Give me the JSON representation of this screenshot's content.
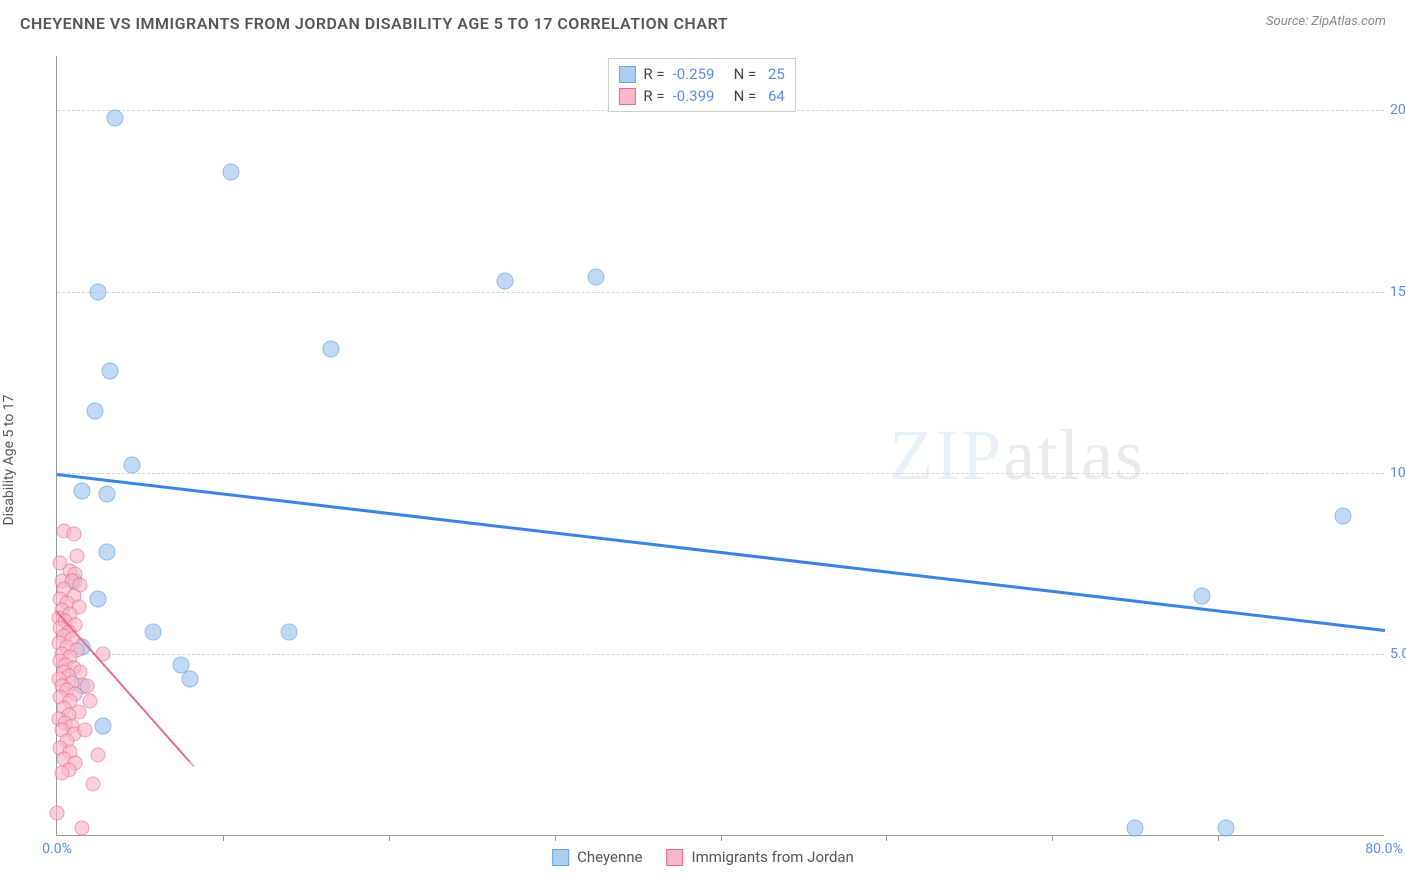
{
  "header": {
    "title": "CHEYENNE VS IMMIGRANTS FROM JORDAN DISABILITY AGE 5 TO 17 CORRELATION CHART",
    "source": "Source: ZipAtlas.com"
  },
  "ylabel": "Disability Age 5 to 17",
  "chart": {
    "type": "scatter",
    "xlim": [
      0,
      80
    ],
    "ylim": [
      0,
      21.5
    ],
    "background": "#ffffff",
    "grid_color": "#d5d5d5",
    "axis_color": "#999999",
    "yticks": [
      {
        "v": 5,
        "label": "5.0%"
      },
      {
        "v": 10,
        "label": "10.0%"
      },
      {
        "v": 15,
        "label": "15.0%"
      },
      {
        "v": 20,
        "label": "20.0%"
      }
    ],
    "xticks": [
      {
        "v": 0,
        "label": "0.0%"
      },
      {
        "v": 80,
        "label": "80.0%"
      }
    ],
    "xtick_marks": [
      10,
      20,
      30,
      40,
      50,
      60,
      70
    ],
    "watermark": {
      "zip": "ZIP",
      "atlas": "atlas"
    },
    "series": [
      {
        "name": "Cheyenne",
        "color_fill": "#aecdf2",
        "color_stroke": "#6ea3e8",
        "marker_size": 17,
        "opacity": 0.75,
        "trend": {
          "x1": 0,
          "y1": 10.0,
          "x2": 80,
          "y2": 5.7,
          "color": "#3b82e6",
          "width": 2.5
        },
        "points": [
          {
            "x": 3.5,
            "y": 19.8
          },
          {
            "x": 10.5,
            "y": 18.3
          },
          {
            "x": 2.5,
            "y": 15.0
          },
          {
            "x": 27.0,
            "y": 15.3
          },
          {
            "x": 32.5,
            "y": 15.4
          },
          {
            "x": 16.5,
            "y": 13.4
          },
          {
            "x": 3.2,
            "y": 12.8
          },
          {
            "x": 2.3,
            "y": 11.7
          },
          {
            "x": 4.5,
            "y": 10.2
          },
          {
            "x": 1.5,
            "y": 9.5
          },
          {
            "x": 3.0,
            "y": 9.4
          },
          {
            "x": 77.5,
            "y": 8.8
          },
          {
            "x": 1.0,
            "y": 7.0
          },
          {
            "x": 2.5,
            "y": 6.5
          },
          {
            "x": 69.0,
            "y": 6.6
          },
          {
            "x": 5.8,
            "y": 5.6
          },
          {
            "x": 14.0,
            "y": 5.6
          },
          {
            "x": 1.5,
            "y": 5.2
          },
          {
            "x": 7.5,
            "y": 4.7
          },
          {
            "x": 8.0,
            "y": 4.3
          },
          {
            "x": 1.5,
            "y": 4.1
          },
          {
            "x": 2.8,
            "y": 3.0
          },
          {
            "x": 65.0,
            "y": 0.2
          },
          {
            "x": 70.5,
            "y": 0.2
          },
          {
            "x": 3.0,
            "y": 7.8
          }
        ]
      },
      {
        "name": "Immigrants from Jordan",
        "color_fill": "#f7b8c8",
        "color_stroke": "#ec6a8f",
        "marker_size": 15,
        "opacity": 0.65,
        "trend": {
          "x1": 0,
          "y1": 6.2,
          "x2": 12,
          "y2": 0,
          "color": "#ec6a8f",
          "width": 2,
          "dash_after": 8
        },
        "points": [
          {
            "x": 0.4,
            "y": 8.4
          },
          {
            "x": 1.0,
            "y": 8.3
          },
          {
            "x": 1.2,
            "y": 7.7
          },
          {
            "x": 0.2,
            "y": 7.5
          },
          {
            "x": 0.8,
            "y": 7.3
          },
          {
            "x": 1.1,
            "y": 7.2
          },
          {
            "x": 0.3,
            "y": 7.0
          },
          {
            "x": 0.9,
            "y": 7.0
          },
          {
            "x": 1.4,
            "y": 6.9
          },
          {
            "x": 0.4,
            "y": 6.8
          },
          {
            "x": 1.0,
            "y": 6.6
          },
          {
            "x": 0.2,
            "y": 6.5
          },
          {
            "x": 0.6,
            "y": 6.4
          },
          {
            "x": 1.3,
            "y": 6.3
          },
          {
            "x": 0.3,
            "y": 6.2
          },
          {
            "x": 0.8,
            "y": 6.1
          },
          {
            "x": 0.1,
            "y": 6.0
          },
          {
            "x": 0.5,
            "y": 5.9
          },
          {
            "x": 1.1,
            "y": 5.8
          },
          {
            "x": 0.2,
            "y": 5.7
          },
          {
            "x": 0.7,
            "y": 5.6
          },
          {
            "x": 0.4,
            "y": 5.5
          },
          {
            "x": 0.9,
            "y": 5.4
          },
          {
            "x": 0.1,
            "y": 5.3
          },
          {
            "x": 0.6,
            "y": 5.2
          },
          {
            "x": 1.2,
            "y": 5.1
          },
          {
            "x": 0.3,
            "y": 5.0
          },
          {
            "x": 2.8,
            "y": 5.0
          },
          {
            "x": 0.8,
            "y": 4.9
          },
          {
            "x": 0.2,
            "y": 4.8
          },
          {
            "x": 0.5,
            "y": 4.7
          },
          {
            "x": 1.0,
            "y": 4.6
          },
          {
            "x": 0.4,
            "y": 4.5
          },
          {
            "x": 1.4,
            "y": 4.5
          },
          {
            "x": 0.7,
            "y": 4.4
          },
          {
            "x": 0.1,
            "y": 4.3
          },
          {
            "x": 0.9,
            "y": 4.2
          },
          {
            "x": 0.3,
            "y": 4.1
          },
          {
            "x": 1.8,
            "y": 4.1
          },
          {
            "x": 0.6,
            "y": 4.0
          },
          {
            "x": 1.1,
            "y": 3.9
          },
          {
            "x": 0.2,
            "y": 3.8
          },
          {
            "x": 0.8,
            "y": 3.7
          },
          {
            "x": 2.0,
            "y": 3.7
          },
          {
            "x": 0.4,
            "y": 3.5
          },
          {
            "x": 1.3,
            "y": 3.4
          },
          {
            "x": 0.7,
            "y": 3.3
          },
          {
            "x": 0.1,
            "y": 3.2
          },
          {
            "x": 0.5,
            "y": 3.1
          },
          {
            "x": 0.9,
            "y": 3.0
          },
          {
            "x": 0.3,
            "y": 2.9
          },
          {
            "x": 1.0,
            "y": 2.8
          },
          {
            "x": 1.7,
            "y": 2.9
          },
          {
            "x": 0.6,
            "y": 2.6
          },
          {
            "x": 0.2,
            "y": 2.4
          },
          {
            "x": 0.8,
            "y": 2.3
          },
          {
            "x": 2.5,
            "y": 2.2
          },
          {
            "x": 0.4,
            "y": 2.1
          },
          {
            "x": 1.1,
            "y": 2.0
          },
          {
            "x": 0.7,
            "y": 1.8
          },
          {
            "x": 0.3,
            "y": 1.7
          },
          {
            "x": 2.2,
            "y": 1.4
          },
          {
            "x": 0.0,
            "y": 0.6
          },
          {
            "x": 1.5,
            "y": 0.2
          }
        ]
      }
    ],
    "legend_top": [
      {
        "swatch_fill": "#aecdf2",
        "swatch_stroke": "#6ea3e8",
        "r_label": "R = ",
        "r": "-0.259",
        "n_label": "   N = ",
        "n": "25"
      },
      {
        "swatch_fill": "#f7b8c8",
        "swatch_stroke": "#ec6a8f",
        "r_label": "R = ",
        "r": "-0.399",
        "n_label": "   N = ",
        "n": "64"
      }
    ],
    "legend_bottom": [
      {
        "swatch_fill": "#aecdf2",
        "swatch_stroke": "#6ea3e8",
        "label": "Cheyenne"
      },
      {
        "swatch_fill": "#f7b8c8",
        "swatch_stroke": "#ec6a8f",
        "label": "Immigrants from Jordan"
      }
    ]
  }
}
